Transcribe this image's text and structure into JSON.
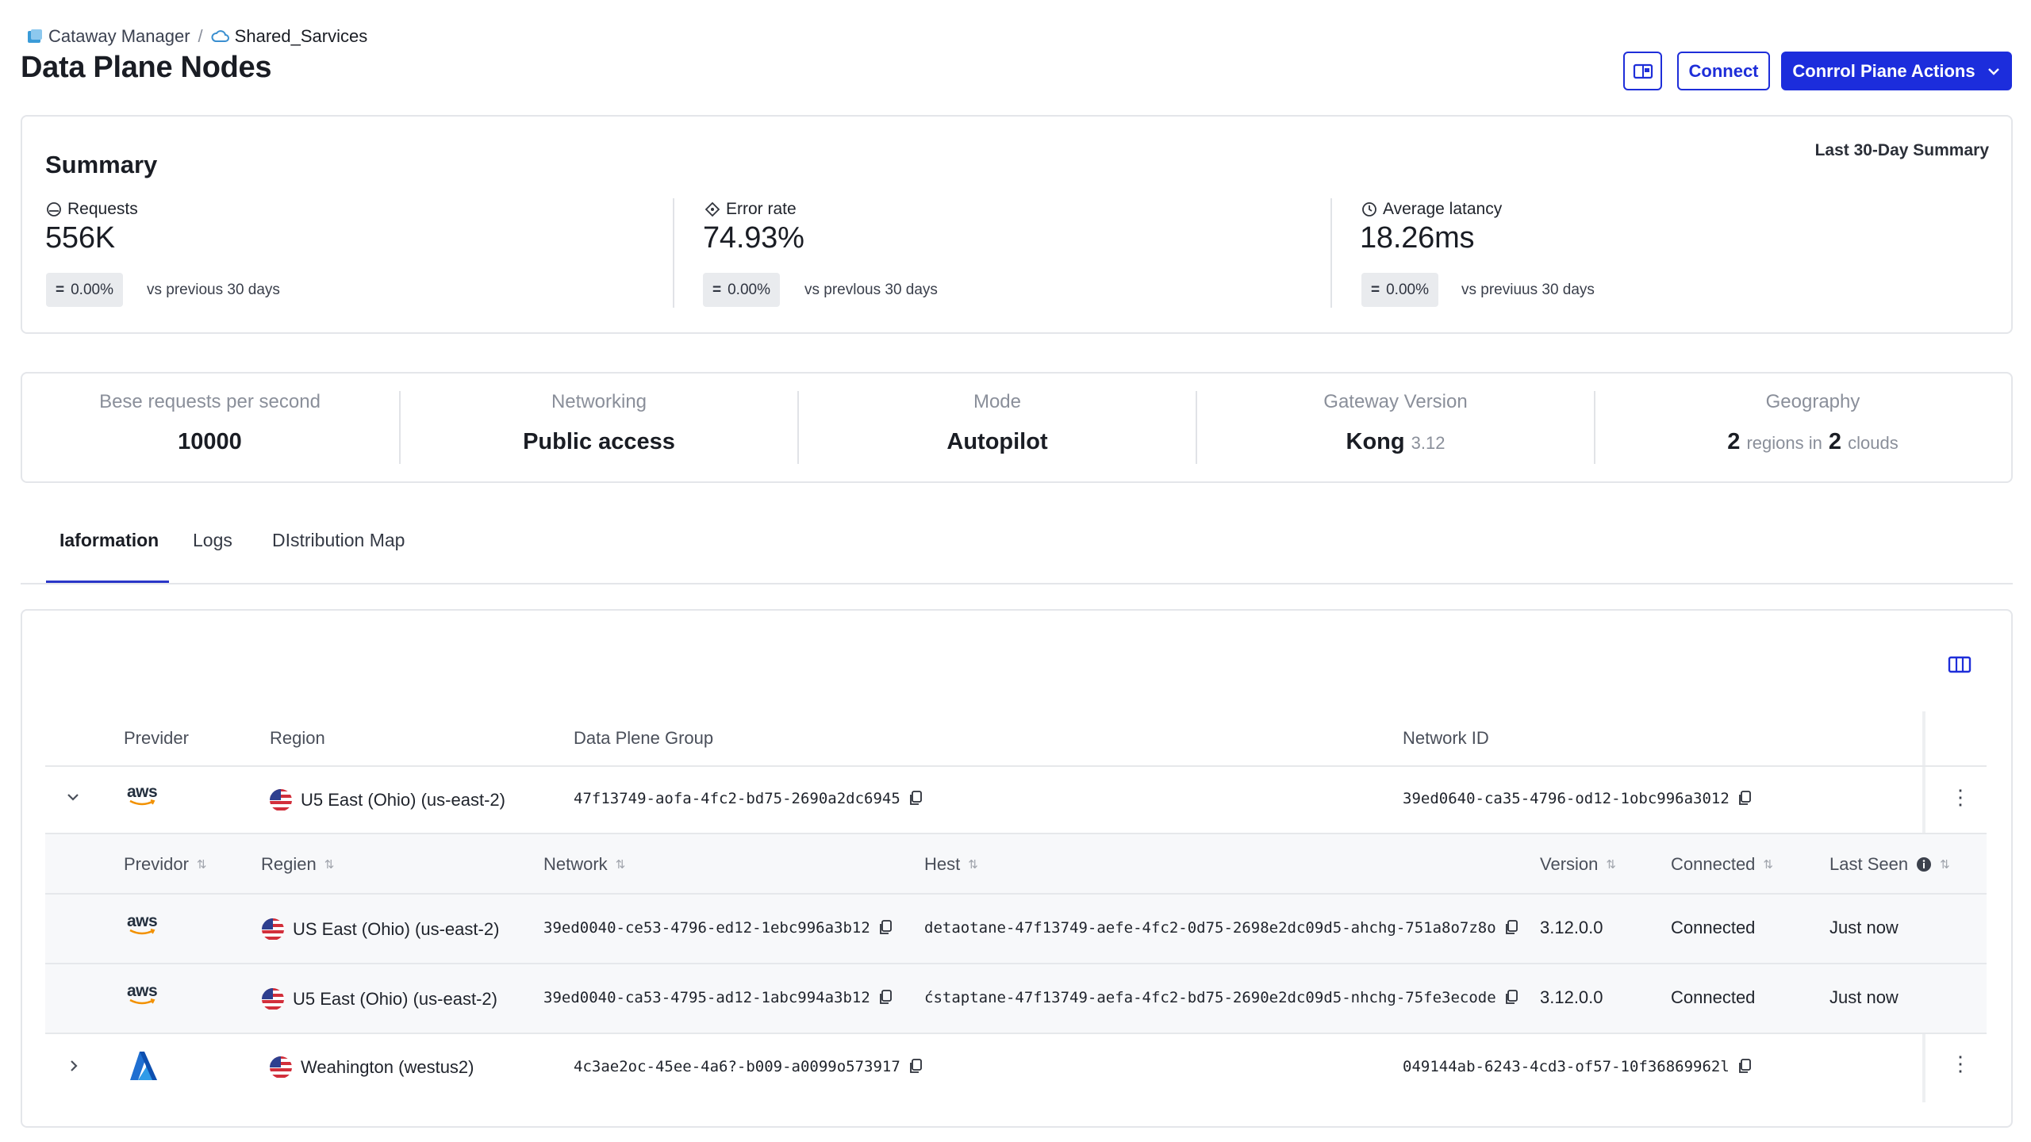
{
  "breadcrumb": {
    "items": [
      {
        "label": "Cataway Manager",
        "icon": "gateway-icon"
      },
      {
        "label": "Shared_Sarvices",
        "icon": "cloud-icon"
      }
    ],
    "separator": "/"
  },
  "header": {
    "title": "Data Plane Nodes",
    "connect_label": "Connect",
    "actions_label": "Conrrol Piane Actions"
  },
  "summary": {
    "title": "Summary",
    "period": "Last 30-Day Summary",
    "metrics": [
      {
        "label": "Requests",
        "value": "556K",
        "delta": "0.00%",
        "note": "vs previous 30 days",
        "icon": "gauge-icon"
      },
      {
        "label": "Error rate",
        "value": "74.93%",
        "delta": "0.00%",
        "note": "vs prevlous 30 days",
        "icon": "error-icon"
      },
      {
        "label": "Average latancy",
        "value": "18.26ms",
        "delta": "0.00%",
        "note": "vs previuus 30 days",
        "icon": "clock-icon"
      }
    ]
  },
  "stats": [
    {
      "label": "Bese requests per second",
      "value": "10000"
    },
    {
      "label": "Networking",
      "value": "Public access"
    },
    {
      "label": "Mode",
      "value": "Autopilot"
    },
    {
      "label": "Gateway Version",
      "value": "Kong",
      "suffix": "3.12"
    },
    {
      "label": "Geography",
      "value_num1": "2",
      "value_word1": "regions in",
      "value_num2": "2",
      "value_word2": "clouds"
    }
  ],
  "tabs": [
    "Iaformation",
    "Logs",
    "DIstribution Map"
  ],
  "table": {
    "columns": [
      "Previder",
      "Region",
      "Data Plene Group",
      "Network ID"
    ],
    "groups": [
      {
        "provider": "aws",
        "region": "U5 East (Ohio) (us-east-2)",
        "data_plane_group": "47f13749-aofa-4fc2-bd75-2690a2dc6945",
        "network_id": "39ed0640-ca35-4796-od12-1obc996a3012",
        "expanded": true
      },
      {
        "provider": "azure",
        "region": "Weahington (westus2)",
        "data_plane_group": "4c3ae2oc-45ee-4a6?-b009-a0099o573917",
        "network_id": "049144ab-6243-4cd3-of57-10f36869962l",
        "expanded": false
      }
    ],
    "sub_columns": [
      "Previdor",
      "Regien",
      "Network",
      "Hest",
      "Version",
      "Connected",
      "Last Seen"
    ],
    "sub_rows": [
      {
        "provider": "aws",
        "region": "US East (Ohio) (us-east-2)",
        "network": "39ed0040-ce53-4796-ed12-1ebc996a3b12",
        "host": "detaotane-47f13749-aefe-4fc2-0d75-2698e2dc09d5-ahchg-751a8o7z8o",
        "version": "3.12.0.0",
        "connected": "Connected",
        "last_seen": "Just now"
      },
      {
        "provider": "aws",
        "region": "U5 East (Ohio) (us-east-2)",
        "network": "39ed0040-ca53-4795-ad12-1abc994a3b12",
        "host": "ćstaptane-47f13749-aefa-4fc2-bd75-2690e2dc09d5-nhchg-75fe3ecode",
        "version": "3.12.0.0",
        "connected": "Connected",
        "last_seen": "Just now"
      }
    ]
  },
  "colors": {
    "accent": "#1c2ddc",
    "border": "#e4e6ea",
    "muted_text": "#8a8f9a",
    "tab_underline": "#2a36c8"
  }
}
